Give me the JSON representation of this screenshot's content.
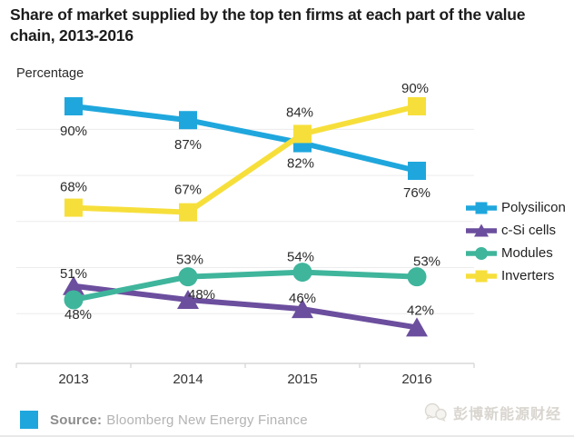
{
  "header": {
    "title": "Share of market supplied by the top ten firms at each part of the value chain, 2013-2016"
  },
  "chart_data": {
    "type": "line",
    "title": "Share of market supplied by the top ten firms at each part of the value chain, 2013-2016",
    "xlabel": "",
    "ylabel": "Percentage",
    "unit": "%",
    "x": [
      "2013",
      "2014",
      "2015",
      "2016"
    ],
    "ylim_visible": [
      34,
      95
    ],
    "gridlines_at_values": [
      85,
      75,
      65,
      55,
      45
    ],
    "grid": "horizontal",
    "legend_position": "right",
    "grid_color": "#ececec",
    "axis_color": "#d9d9d9",
    "tick_label_color": "#333333",
    "data_label_color": "#2b2b2b",
    "series": [
      {
        "name": "Polysilicon",
        "color": "#1FA7DD",
        "marker": "square",
        "values": [
          90,
          87,
          82,
          76
        ],
        "label_offsets": [
          [
            0,
            32
          ],
          [
            0,
            32
          ],
          [
            -2,
            27
          ],
          [
            0,
            29
          ]
        ]
      },
      {
        "name": "c-Si cells",
        "color": "#6C4E9E",
        "marker": "triangle",
        "values": [
          51,
          48,
          46,
          42
        ],
        "label_offsets": [
          [
            0,
            -9
          ],
          [
            15,
            -1
          ],
          [
            0,
            -7
          ],
          [
            4,
            -14
          ]
        ]
      },
      {
        "name": "Modules",
        "color": "#3FB59C",
        "marker": "circle",
        "values": [
          48,
          53,
          54,
          53
        ],
        "label_offsets": [
          [
            5,
            21
          ],
          [
            2,
            -14
          ],
          [
            -2,
            -12
          ],
          [
            11,
            -12
          ]
        ]
      },
      {
        "name": "Inverters",
        "color": "#F7DF3B",
        "marker": "square",
        "values": [
          68,
          67,
          84,
          90
        ],
        "label_offsets": [
          [
            0,
            -18
          ],
          [
            0,
            -20
          ],
          [
            -3,
            -19
          ],
          [
            -2,
            -15
          ]
        ]
      }
    ]
  },
  "footer": {
    "source_label": "Source:",
    "source_value": "Bloomberg New Energy Finance",
    "accent_color": "#1FA7DD"
  },
  "watermark": {
    "text": "彭博新能源财经"
  }
}
